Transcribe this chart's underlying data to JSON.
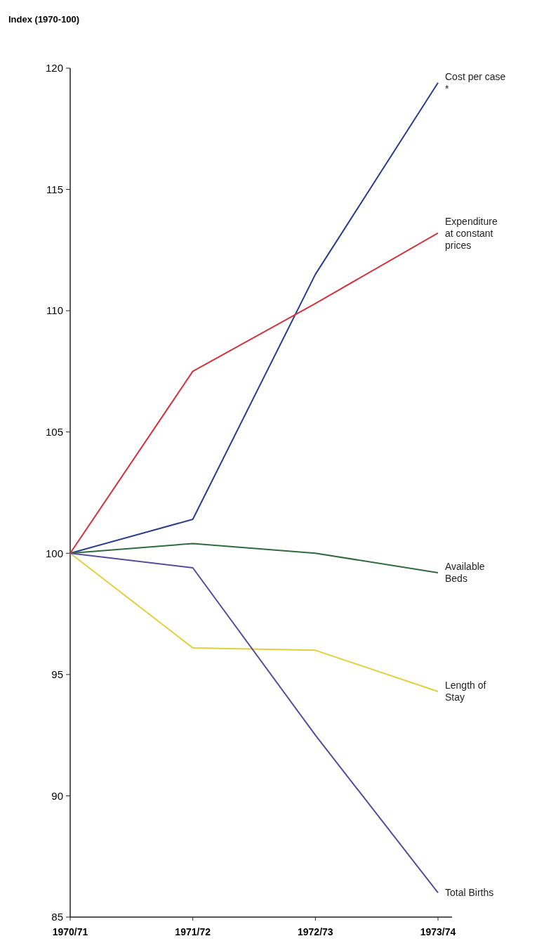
{
  "chart_data": {
    "type": "line",
    "ylabel": "Index (1970-100)",
    "categories": [
      "1970/71",
      "1971/72",
      "1972/73",
      "1973/74"
    ],
    "ylim": [
      85,
      120
    ],
    "yticks": [
      85,
      90,
      95,
      100,
      105,
      110,
      115,
      120
    ],
    "grid": false,
    "legend": false,
    "marker": "none",
    "line_style": "solid",
    "series": [
      {
        "name": "Cost per case *",
        "color": "#2b3c8c",
        "values": [
          100,
          101.4,
          111.5,
          119.4
        ]
      },
      {
        "name": "Expenditure at constant prices",
        "color": "#d0343f",
        "values": [
          100,
          107.5,
          110.3,
          113.2
        ]
      },
      {
        "name": "Available Beds",
        "color": "#2f6b3f",
        "values": [
          100,
          100.4,
          100,
          99.2
        ]
      },
      {
        "name": "Length of Stay",
        "color": "#e0d040",
        "values": [
          100,
          96.1,
          96,
          94.3
        ]
      },
      {
        "name": "Total Births",
        "color": "#5a4a9a",
        "values": [
          100,
          99.4,
          92.5,
          86
        ]
      }
    ]
  }
}
